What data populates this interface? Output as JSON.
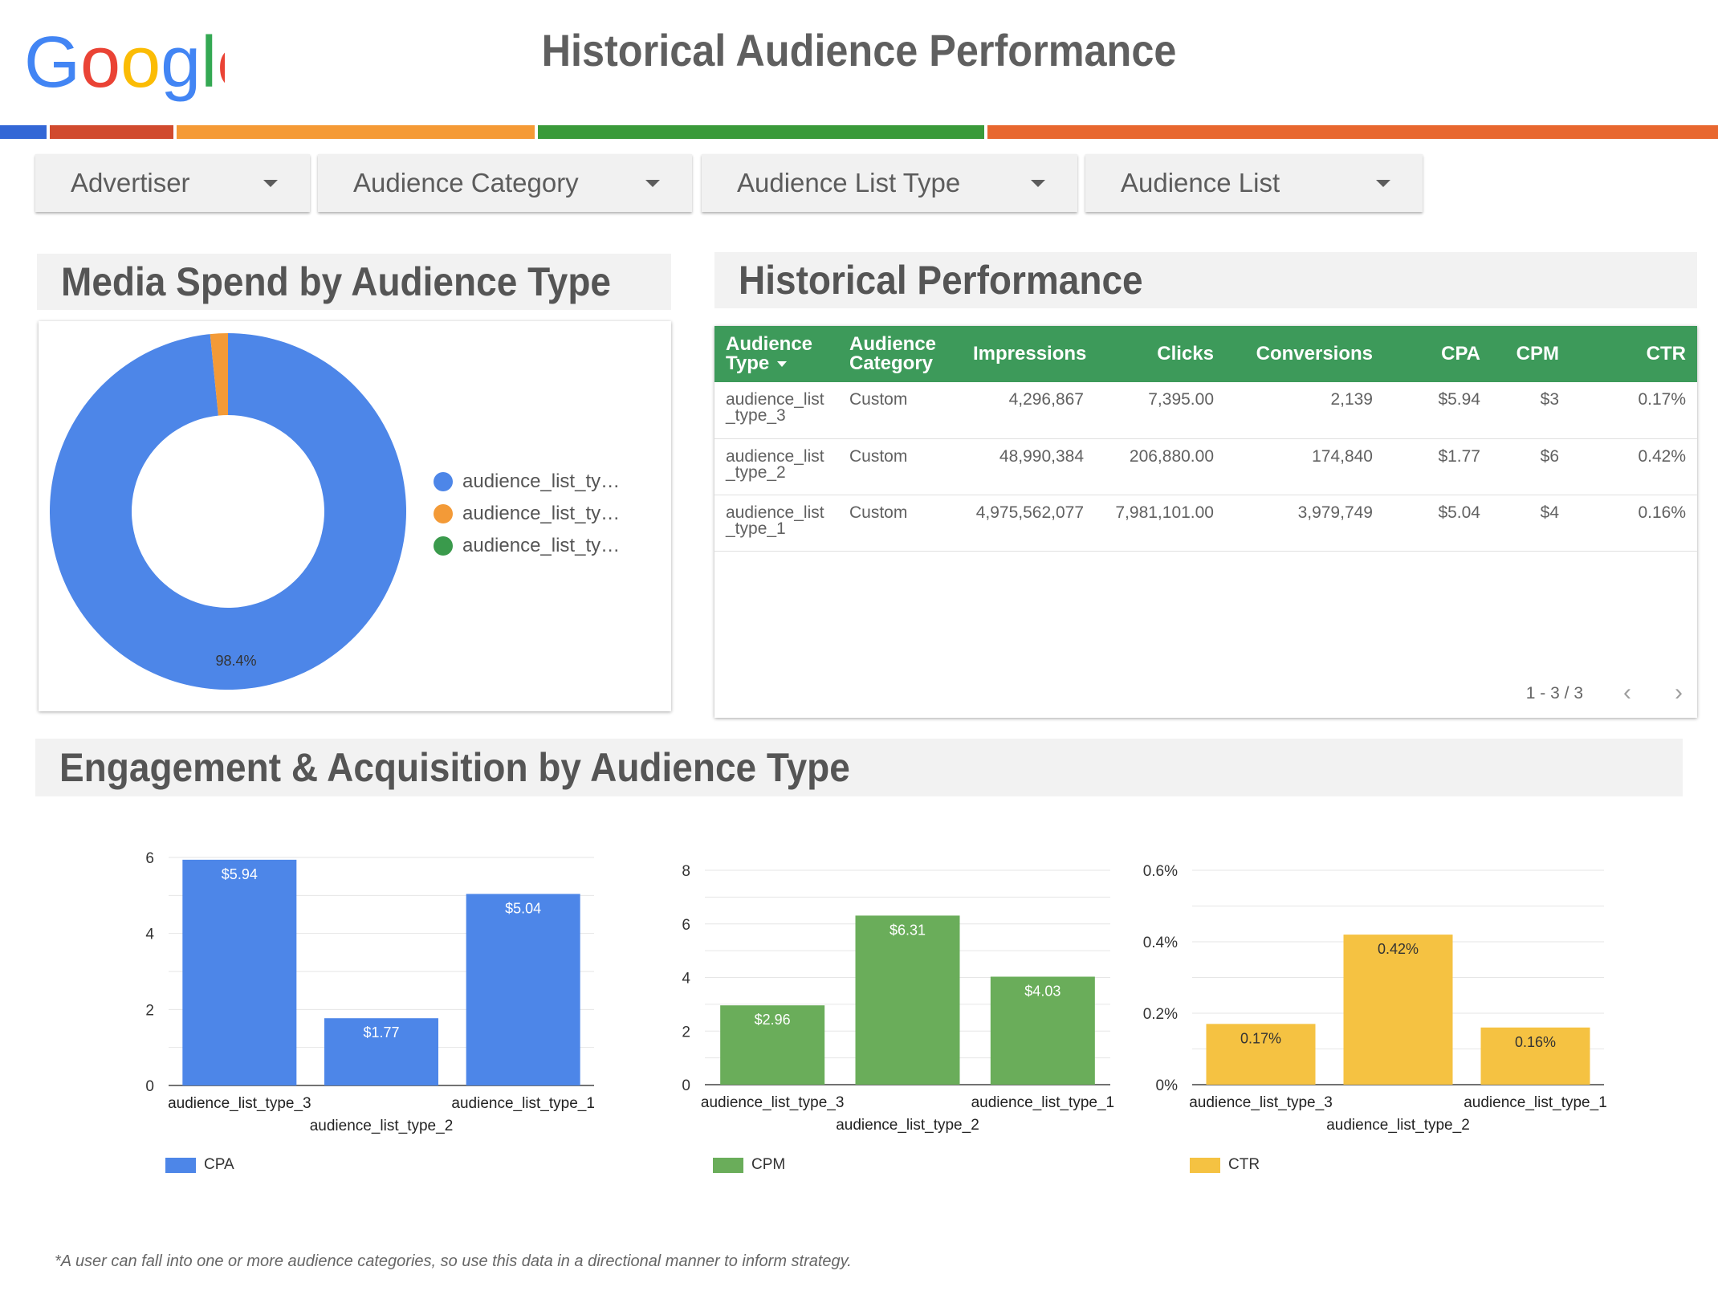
{
  "header": {
    "logo_text": "Google",
    "title": "Historical Audience Performance"
  },
  "colors": {
    "blue": "#4d86e8",
    "orange": "#f39a37",
    "green": "#3a9a4c",
    "yellow": "#f5c242",
    "red": "#d14a2e",
    "bar_green": "#6aad5a",
    "table_header": "#3d9a5a",
    "brand_bar": [
      "#3367d6",
      "#d14a2e",
      "#f59a35",
      "#3a9a3a",
      "#e8672f"
    ]
  },
  "filters": [
    "Advertiser",
    "Audience Category",
    "Audience List Type",
    "Audience List"
  ],
  "sections": {
    "media_spend": "Media Spend by Audience Type",
    "historical": "Historical Performance",
    "engagement": "Engagement & Acquisition by Audience Type"
  },
  "donut": {
    "slice_label": "98.4%",
    "legend": [
      "audience_list_ty…",
      "audience_list_ty…",
      "audience_list_ty…"
    ]
  },
  "table": {
    "columns": [
      "Audience Type",
      "Audience Category",
      "Impressions",
      "Clicks",
      "Conversions",
      "CPA",
      "CPM",
      "CTR"
    ],
    "rows": [
      [
        "audience_list_type_3",
        "Custom",
        "4,296,867",
        "7,395.00",
        "2,139",
        "$5.94",
        "$3",
        "0.17%"
      ],
      [
        "audience_list_type_2",
        "Custom",
        "48,990,384",
        "206,880.00",
        "174,840",
        "$1.77",
        "$6",
        "0.42%"
      ],
      [
        "audience_list_type_1",
        "Custom",
        "4,975,562,077",
        "7,981,101.00",
        "3,979,749",
        "$5.04",
        "$4",
        "0.16%"
      ]
    ],
    "pager": "1 - 3 / 3"
  },
  "chart_data": [
    {
      "type": "pie",
      "categories": [
        "audience_list_type_3",
        "audience_list_type_2",
        "audience_list_type_1"
      ],
      "values": [
        98.4,
        1.6,
        0.0
      ],
      "labels": [
        "98.4%",
        "",
        ""
      ],
      "donut": true,
      "legend": "right"
    },
    {
      "type": "bar",
      "categories": [
        "audience_list_type_3",
        "audience_list_type_2",
        "audience_list_type_1"
      ],
      "series": [
        {
          "name": "CPA",
          "values": [
            5.94,
            1.77,
            5.04
          ]
        }
      ],
      "data_labels": [
        "$5.94",
        "$1.77",
        "$5.04"
      ],
      "yticks": [
        "0",
        "2",
        "4",
        "6"
      ],
      "ylim": [
        0,
        6
      ],
      "grid": true,
      "legend": "bottom-left"
    },
    {
      "type": "bar",
      "categories": [
        "audience_list_type_3",
        "audience_list_type_2",
        "audience_list_type_1"
      ],
      "series": [
        {
          "name": "CPM",
          "values": [
            2.96,
            6.31,
            4.03
          ]
        }
      ],
      "data_labels": [
        "$2.96",
        "$6.31",
        "$4.03"
      ],
      "yticks": [
        "0",
        "2",
        "4",
        "6",
        "8"
      ],
      "ylim": [
        0,
        8
      ],
      "grid": true,
      "legend": "bottom-left"
    },
    {
      "type": "bar",
      "categories": [
        "audience_list_type_3",
        "audience_list_type_2",
        "audience_list_type_1"
      ],
      "series": [
        {
          "name": "CTR",
          "values": [
            0.17,
            0.42,
            0.16
          ]
        }
      ],
      "data_labels": [
        "0.17%",
        "0.42%",
        "0.16%"
      ],
      "yticks": [
        "0%",
        "0.2%",
        "0.4%",
        "0.6%"
      ],
      "ylim": [
        0,
        0.6
      ],
      "grid": true,
      "legend": "bottom-left"
    }
  ],
  "footnote": "*A user can fall into one or more audience categories, so use this data in a directional manner to inform strategy."
}
